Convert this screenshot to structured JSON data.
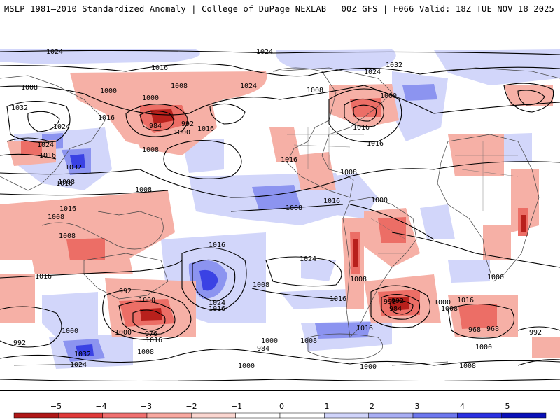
{
  "header": {
    "left": "MSLP 1981—2010 Standardized Anomaly | College of DuPage NEXLAB",
    "right": "00Z GFS | F066 Valid: 18Z TUE NOV 18 2025"
  },
  "isobar_labels": [
    "1024",
    "1024",
    "1016",
    "1008",
    "1000",
    "1008",
    "1000",
    "984",
    "992",
    "1000",
    "1016",
    "1008",
    "1032",
    "1024",
    "1016",
    "1024",
    "1032",
    "1016",
    "1008",
    "1024",
    "1032",
    "1000",
    "1016",
    "1008",
    "1024",
    "1016",
    "1016",
    "1008",
    "1000",
    "1016",
    "1008",
    "1016",
    "1008",
    "1016",
    "1008",
    "1008",
    "1016",
    "1024",
    "1016",
    "992",
    "1000",
    "1024",
    "1016",
    "1008",
    "1016",
    "968",
    "976",
    "1000",
    "1016",
    "1008",
    "1032",
    "1024",
    "1000",
    "992",
    "1016",
    "992",
    "984",
    "1008",
    "992",
    "1000",
    "984",
    "1000",
    "1008",
    "1016",
    "1008",
    "968",
    "992",
    "1000",
    "1000",
    "1008",
    "1000",
    "1000"
  ],
  "colorbar": {
    "ticks": [
      "−5",
      "−4",
      "−3",
      "−2",
      "−1",
      "0",
      "1",
      "2",
      "3",
      "4",
      "5"
    ],
    "colors": [
      "#b01818",
      "#e03a3a",
      "#f07070",
      "#f8a8a0",
      "#fad6d0",
      "#ffffff",
      "#ffffff",
      "#d0d4fa",
      "#a8aef4",
      "#6e78ee",
      "#2a30e0",
      "#0a10b8"
    ]
  }
}
